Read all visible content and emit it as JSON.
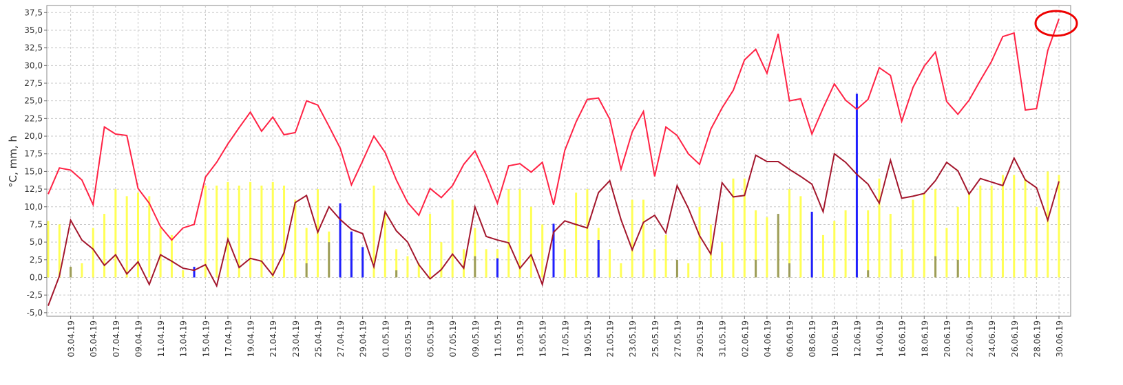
{
  "chart_data": {
    "type": "line",
    "ylabel": "°C, mm, h",
    "categories": [
      null,
      null,
      "03.04.19",
      null,
      "05.04.19",
      null,
      "07.04.19",
      null,
      "09.04.19",
      null,
      "11.04.19",
      null,
      "13.04.19",
      null,
      "15.04.19",
      null,
      "17.04.19",
      null,
      "19.04.19",
      null,
      "21.04.19",
      null,
      "23.04.19",
      null,
      "25.04.19",
      null,
      "27.04.19",
      null,
      "29.04.19",
      null,
      "01.05.19",
      null,
      "03.05.19",
      null,
      "05.05.19",
      null,
      "07.05.19",
      null,
      "09.05.19",
      null,
      "11.05.19",
      null,
      "13.05.19",
      null,
      "15.05.19",
      null,
      "17.05.19",
      null,
      "19.05.19",
      null,
      "21.05.19",
      null,
      "23.05.19",
      null,
      "25.05.19",
      null,
      "27.05.19",
      null,
      "29.05.19",
      null,
      "31.05.19",
      null,
      "02.06.19",
      null,
      "04.06.19",
      null,
      "06.06.19",
      null,
      "08.06.19",
      null,
      "10.06.19",
      null,
      "12.06.19",
      null,
      "14.06.19",
      null,
      "16.06.19",
      null,
      "18.06.19",
      null,
      "20.06.19",
      null,
      "22.06.19",
      null,
      "24.06.19",
      null,
      "26.06.19",
      null,
      "28.06.19",
      null,
      "30.06.19"
    ],
    "series": [
      {
        "kind": "bar",
        "color": "#ffff55",
        "values": [
          8,
          7.5,
          1.5,
          2,
          7,
          9,
          12.5,
          11.5,
          12,
          11.5,
          7,
          6,
          1,
          0.5,
          13,
          13,
          13.5,
          13,
          13.5,
          13,
          13.5,
          13,
          11,
          7,
          12.5,
          6.5,
          2,
          4,
          3,
          13,
          9,
          4,
          3,
          2,
          9,
          5,
          11,
          4,
          7,
          4,
          4,
          12.5,
          12.5,
          10,
          7.5,
          7,
          4,
          12,
          12.5,
          7,
          4,
          2,
          11,
          11,
          4,
          6,
          2,
          2,
          10,
          7.5,
          5,
          14,
          14,
          9.5,
          8.5,
          8,
          12.5,
          11.5,
          9,
          6,
          8,
          9.5,
          1,
          9.5,
          14,
          9,
          4,
          11,
          12,
          12.5,
          7,
          10,
          12,
          13,
          13,
          14.5,
          14.5,
          14,
          10,
          15,
          14.5
        ]
      },
      {
        "kind": "bar",
        "color": "#9c9c5a",
        "values": [
          null,
          null,
          1.5,
          null,
          null,
          null,
          null,
          null,
          null,
          null,
          null,
          null,
          null,
          null,
          null,
          null,
          null,
          null,
          null,
          null,
          null,
          null,
          null,
          2,
          null,
          5,
          null,
          4,
          null,
          null,
          null,
          1,
          null,
          null,
          null,
          null,
          null,
          null,
          3,
          null,
          null,
          null,
          null,
          null,
          null,
          null,
          null,
          null,
          null,
          4,
          null,
          null,
          null,
          null,
          null,
          null,
          2.5,
          null,
          null,
          null,
          null,
          null,
          null,
          2.5,
          null,
          9,
          2,
          null,
          null,
          null,
          null,
          null,
          null,
          1,
          null,
          null,
          null,
          null,
          null,
          3,
          null,
          2.5,
          null,
          null,
          null,
          null,
          null,
          null,
          null,
          null,
          null
        ]
      },
      {
        "kind": "bar",
        "color": "#1f1fff",
        "values": [
          null,
          null,
          null,
          null,
          null,
          null,
          null,
          null,
          null,
          null,
          null,
          null,
          null,
          1.5,
          null,
          null,
          null,
          null,
          null,
          null,
          null,
          null,
          null,
          null,
          null,
          null,
          10.5,
          6.5,
          4.3,
          null,
          null,
          null,
          null,
          null,
          null,
          null,
          null,
          null,
          null,
          null,
          2.7,
          null,
          null,
          null,
          null,
          7.6,
          null,
          null,
          null,
          5.3,
          null,
          null,
          null,
          null,
          null,
          null,
          null,
          null,
          null,
          null,
          null,
          null,
          null,
          null,
          null,
          null,
          null,
          null,
          9.3,
          null,
          null,
          null,
          26,
          null,
          null,
          null,
          null,
          null,
          null,
          null,
          null,
          null,
          null,
          null,
          null,
          null,
          null,
          null,
          null,
          null,
          null
        ]
      },
      {
        "kind": "line",
        "color": "#ff2244",
        "values": [
          11.8,
          15.5,
          15.2,
          13.8,
          10.3,
          21.3,
          20.3,
          20.1,
          12.6,
          10.5,
          7.2,
          5.3,
          7,
          7.5,
          14.2,
          16.3,
          18.9,
          21.2,
          23.4,
          20.7,
          22.7,
          20.2,
          20.5,
          25,
          24.4,
          21.4,
          18.3,
          13.1,
          16.5,
          20,
          17.7,
          13.8,
          10.6,
          8.8,
          12.6,
          11.3,
          13,
          16,
          17.9,
          14.5,
          10.5,
          15.8,
          16.1,
          14.9,
          16.3,
          10.3,
          18,
          22,
          25.2,
          25.4,
          22.4,
          15.3,
          20.6,
          23.5,
          14.3,
          21.3,
          20.1,
          17.5,
          16,
          21,
          24,
          26.5,
          30.8,
          32.3,
          28.9,
          34.5,
          25,
          25.3,
          20.3,
          24,
          27.4,
          25.1,
          23.8,
          25.2,
          29.7,
          28.6,
          22.1,
          26.9,
          29.9,
          31.9,
          24.9,
          23.1,
          25.1,
          27.9,
          30.6,
          34.1,
          34.6,
          23.7,
          23.9,
          32.1,
          36.6
        ]
      },
      {
        "kind": "line",
        "color": "#a3162c",
        "values": [
          -4,
          0.2,
          8.1,
          5.3,
          4,
          1.7,
          3.2,
          0.5,
          2.2,
          -1,
          3.2,
          2.3,
          1.3,
          1,
          1.8,
          -1.2,
          5.4,
          1.4,
          2.7,
          2.3,
          0.3,
          3.5,
          10.6,
          11.6,
          6.4,
          10,
          8.2,
          6.8,
          6.2,
          1.5,
          9.3,
          6.6,
          5,
          1.8,
          -0.2,
          1.1,
          3.3,
          1.3,
          10,
          5.8,
          5.3,
          4.9,
          1.3,
          3.2,
          -1,
          6.4,
          8,
          7.5,
          7,
          12,
          13.7,
          8.2,
          3.9,
          7.8,
          8.8,
          6.3,
          13,
          9.8,
          5.9,
          3.3,
          13.4,
          11.4,
          11.6,
          17.3,
          16.4,
          16.4,
          15.3,
          14.3,
          13.2,
          9.3,
          17.5,
          16.3,
          14.6,
          13.2,
          10.5,
          16.6,
          11.2,
          11.5,
          11.9,
          13.7,
          16.3,
          15.1,
          11.8,
          14,
          13.5,
          13,
          16.9,
          13.8,
          12.7,
          8.1,
          13.6
        ]
      }
    ],
    "ylim": [
      -5.5,
      38.5
    ],
    "yticks": [
      {
        "value": -5,
        "label": "-5,0"
      },
      {
        "value": -2.5,
        "label": "-2,5"
      },
      {
        "value": 0,
        "label": "0,0"
      },
      {
        "value": 2.5,
        "label": "2,5"
      },
      {
        "value": 5,
        "label": "5,0"
      },
      {
        "value": 7.5,
        "label": "7,5"
      },
      {
        "value": 10,
        "label": "10,0"
      },
      {
        "value": 12.5,
        "label": "12,5"
      },
      {
        "value": 15,
        "label": "15,0"
      },
      {
        "value": 17.5,
        "label": "17,5"
      },
      {
        "value": 20,
        "label": "20,0"
      },
      {
        "value": 22.5,
        "label": "22,5"
      },
      {
        "value": 25,
        "label": "25,0"
      },
      {
        "value": 27.5,
        "label": "27,5"
      },
      {
        "value": 30,
        "label": "30,0"
      },
      {
        "value": 32.5,
        "label": "32,5"
      },
      {
        "value": 35,
        "label": "35,0"
      },
      {
        "value": 37.5,
        "label": "37,5"
      }
    ],
    "grid": true
  }
}
